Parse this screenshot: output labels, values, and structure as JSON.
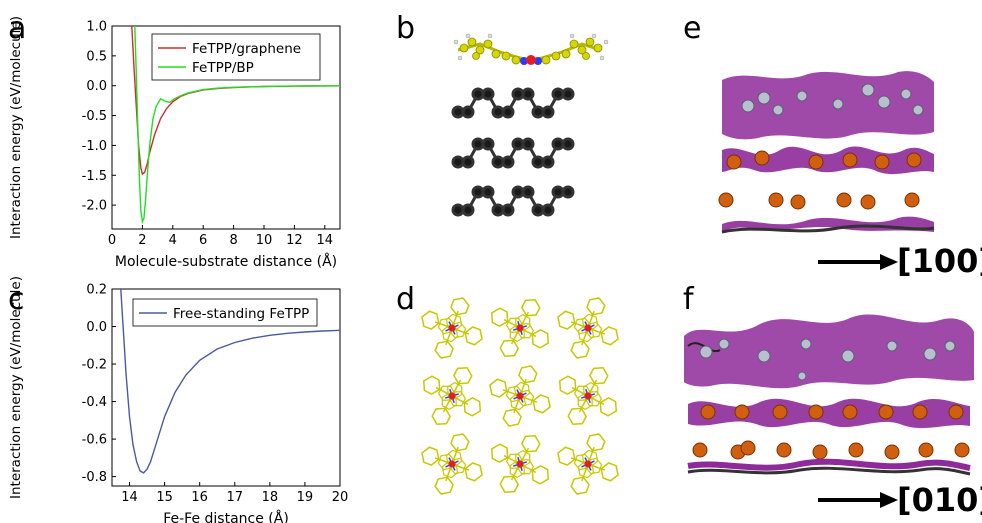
{
  "panels": {
    "a": "a",
    "b": "b",
    "c": "c",
    "d": "d",
    "e": "e",
    "f": "f"
  },
  "arrows": {
    "e_label": "[100]",
    "f_label": "[010]"
  },
  "colors": {
    "graphene": "#d42a2a",
    "bp": "#22dd22",
    "free": "#4a5aa0",
    "molecule_yellow": "#c8c800",
    "phosphorus_black": "#222222",
    "isosurface_purple": "#8e2a9a",
    "phosphorus_orange": "#d06010"
  },
  "chart_data": [
    {
      "id": "a",
      "type": "line",
      "xlabel": "Molecule-substrate distance (Å)",
      "ylabel": "Interaction energy (eV/molecule)",
      "xlim": [
        0,
        15
      ],
      "ylim": [
        -2.4,
        1.0
      ],
      "xticks": [
        0,
        2,
        4,
        6,
        8,
        10,
        12,
        14
      ],
      "yticks": [
        1.0,
        0.5,
        0.0,
        -0.5,
        -1.0,
        -1.5,
        -2.0
      ],
      "xtick_labels": [
        "0",
        "2",
        "4",
        "6",
        "8",
        "10",
        "12",
        "14"
      ],
      "ytick_labels": [
        "1.0",
        "0.5",
        "0.0",
        "-0.5",
        "-1.0",
        "-1.5",
        "-2.0"
      ],
      "legend_position": "top-right",
      "grid": false,
      "series": [
        {
          "name": "FeTPP/graphene",
          "color": "#d42a2a",
          "x": [
            1.3,
            1.45,
            1.6,
            1.75,
            1.9,
            2.0,
            2.15,
            2.3,
            2.5,
            2.8,
            3.2,
            3.6,
            4.0,
            4.5,
            5.0,
            6.0,
            7.0,
            8.0,
            9.0,
            10.0,
            11.0,
            12.0,
            13.0,
            14.0,
            15.0
          ],
          "y": [
            1.0,
            0.3,
            -0.35,
            -1.0,
            -1.38,
            -1.48,
            -1.45,
            -1.32,
            -1.1,
            -0.82,
            -0.55,
            -0.38,
            -0.27,
            -0.18,
            -0.13,
            -0.07,
            -0.045,
            -0.03,
            -0.02,
            -0.014,
            -0.01,
            -0.007,
            -0.005,
            -0.003,
            -0.002
          ]
        },
        {
          "name": "FeTPP/BP",
          "color": "#22dd22",
          "x": [
            1.5,
            1.6,
            1.7,
            1.8,
            1.9,
            2.0,
            2.1,
            2.2,
            2.35,
            2.5,
            2.7,
            2.9,
            3.2,
            3.5,
            3.8,
            4.1,
            4.5,
            5.0,
            6.0,
            7.0,
            8.0,
            9.0,
            10.0,
            11.0,
            12.0,
            13.0,
            14.0,
            15.0
          ],
          "y": [
            1.0,
            0.2,
            -0.7,
            -1.55,
            -2.1,
            -2.28,
            -2.22,
            -1.95,
            -1.4,
            -0.95,
            -0.55,
            -0.35,
            -0.22,
            -0.26,
            -0.28,
            -0.22,
            -0.17,
            -0.12,
            -0.065,
            -0.04,
            -0.026,
            -0.018,
            -0.013,
            -0.009,
            -0.006,
            -0.004,
            -0.003,
            -0.002
          ]
        }
      ]
    },
    {
      "id": "c",
      "type": "line",
      "xlabel": "Fe-Fe distance (Å)",
      "ylabel": "Interaction energy (eV/molecule)",
      "xlim": [
        13.5,
        20
      ],
      "ylim": [
        -0.85,
        0.2
      ],
      "xticks": [
        14,
        15,
        16,
        17,
        18,
        19,
        20
      ],
      "yticks": [
        0.2,
        0.0,
        -0.2,
        -0.4,
        -0.6,
        -0.8
      ],
      "xtick_labels": [
        "14",
        "15",
        "16",
        "17",
        "18",
        "19",
        "20"
      ],
      "ytick_labels": [
        "0.2",
        "0.0",
        "-0.2",
        "-0.4",
        "-0.6",
        "-0.8"
      ],
      "legend_position": "top-right",
      "grid": false,
      "series": [
        {
          "name": "Free-standing FeTPP",
          "color": "#4a5aa0",
          "x": [
            13.75,
            13.8,
            13.85,
            13.9,
            14.0,
            14.1,
            14.2,
            14.3,
            14.4,
            14.5,
            14.6,
            14.8,
            15.0,
            15.3,
            15.6,
            16.0,
            16.5,
            17.0,
            17.5,
            18.0,
            18.5,
            19.0,
            19.5,
            20.0
          ],
          "y": [
            0.2,
            0.05,
            -0.1,
            -0.25,
            -0.48,
            -0.63,
            -0.72,
            -0.77,
            -0.78,
            -0.76,
            -0.72,
            -0.6,
            -0.48,
            -0.35,
            -0.26,
            -0.18,
            -0.12,
            -0.085,
            -0.062,
            -0.047,
            -0.036,
            -0.029,
            -0.024,
            -0.02
          ]
        }
      ]
    }
  ]
}
